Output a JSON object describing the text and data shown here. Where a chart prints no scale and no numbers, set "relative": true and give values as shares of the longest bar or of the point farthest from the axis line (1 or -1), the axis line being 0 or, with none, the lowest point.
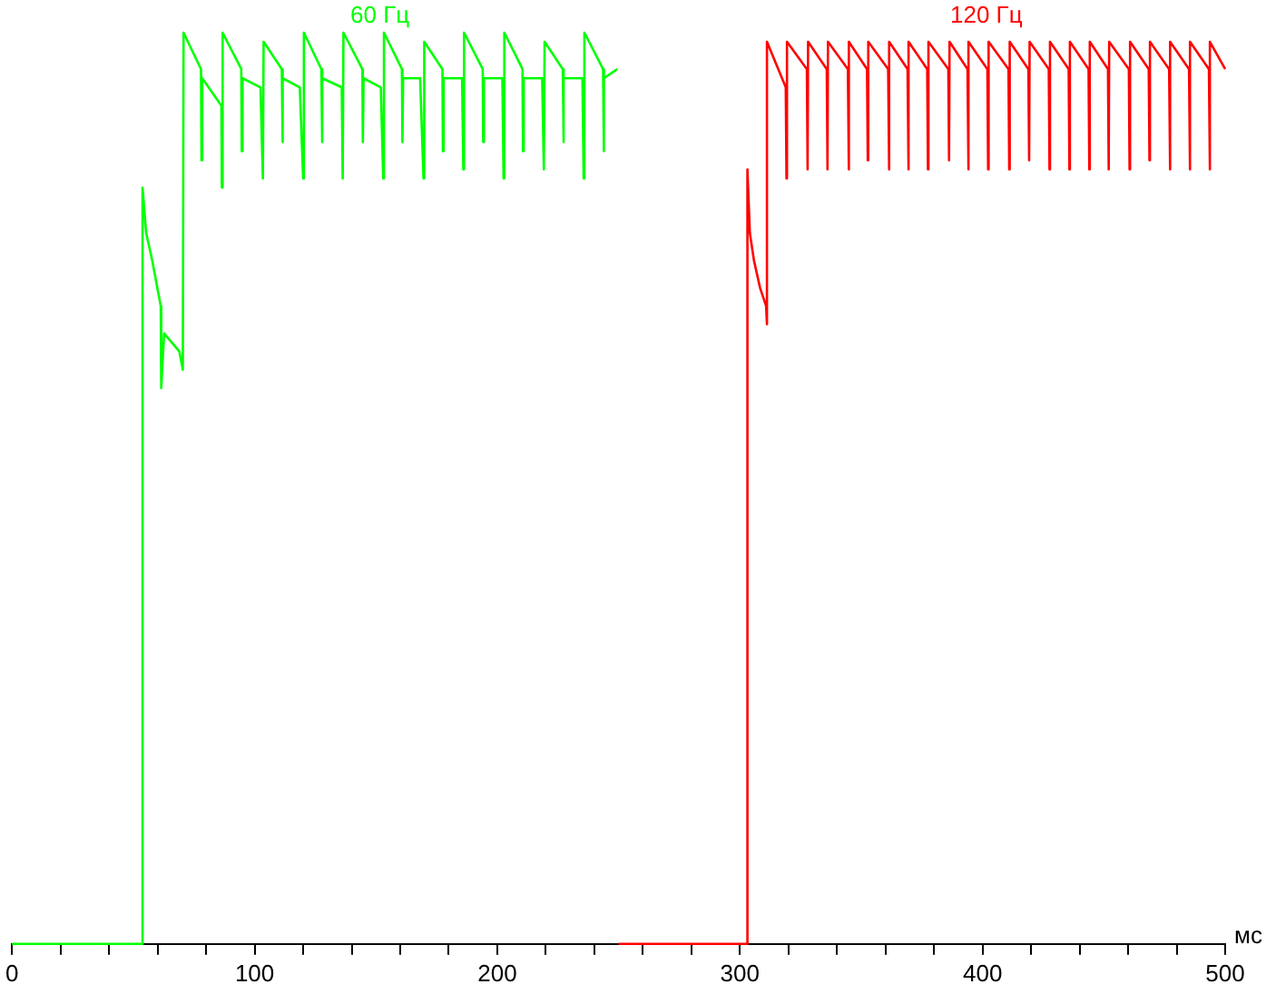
{
  "chart_data": {
    "type": "line",
    "relative": true,
    "xlabel": "мс",
    "xlim": [
      0,
      500
    ],
    "xticks": [
      0,
      {
        "value": 20,
        "label": null
      },
      {
        "value": 40,
        "label": null
      },
      {
        "value": 60,
        "label": null
      },
      {
        "value": 80,
        "label": null
      },
      100,
      {
        "value": 120,
        "label": null
      },
      {
        "value": 140,
        "label": null
      },
      {
        "value": 160,
        "label": null
      },
      {
        "value": 180,
        "label": null
      },
      200,
      {
        "value": 220,
        "label": null
      },
      {
        "value": 240,
        "label": null
      },
      {
        "value": 260,
        "label": null
      },
      {
        "value": 280,
        "label": null
      },
      300,
      {
        "value": 320,
        "label": null
      },
      {
        "value": 340,
        "label": null
      },
      {
        "value": 360,
        "label": null
      },
      {
        "value": 380,
        "label": null
      },
      400,
      {
        "value": 420,
        "label": null
      },
      {
        "value": 440,
        "label": null
      },
      {
        "value": 460,
        "label": null
      },
      {
        "value": 480,
        "label": null
      },
      500
    ],
    "legend": false,
    "series": [
      {
        "name": "60 Гц",
        "color": "#00ff00",
        "x": [
          0,
          53.5,
          53.8,
          55.3,
          57.8,
          61.3,
          61.5,
          62.7,
          69,
          70.4,
          70.7,
          77.9,
          78.1,
          78.4,
          86.3,
          86.5,
          86.8,
          94.5,
          94.7,
          95,
          102.4,
          103.4,
          103.7,
          111.2,
          111.4,
          111.7,
          118.6,
          120,
          120.3,
          127.5,
          127.7,
          128,
          135.9,
          136.3,
          136.6,
          144.4,
          144.6,
          144.9,
          152,
          153,
          153.3,
          160.7,
          160.9,
          161.2,
          168.2,
          169.6,
          169.9,
          177.4,
          177.6,
          177.9,
          185.5,
          186,
          186.3,
          194,
          194.2,
          194.5,
          202.1,
          202.6,
          202.9,
          210.4,
          210.6,
          210.9,
          218.5,
          219.2,
          219.5,
          227,
          227.2,
          227.5,
          235.1,
          235.6,
          235.9,
          243.6,
          243.8,
          244.1,
          249.5
        ],
        "values": [
          0,
          0,
          0.83,
          0.78,
          0.75,
          0.7,
          0.61,
          0.67,
          0.65,
          0.63,
          1,
          0.96,
          0.86,
          0.95,
          0.92,
          0.83,
          1,
          0.96,
          0.87,
          0.95,
          0.94,
          0.84,
          0.99,
          0.96,
          0.88,
          0.95,
          0.94,
          0.84,
          1,
          0.96,
          0.88,
          0.95,
          0.94,
          0.84,
          1,
          0.96,
          0.88,
          0.95,
          0.94,
          0.84,
          1,
          0.96,
          0.88,
          0.95,
          0.95,
          0.84,
          0.99,
          0.96,
          0.87,
          0.95,
          0.95,
          0.85,
          1,
          0.96,
          0.88,
          0.95,
          0.95,
          0.84,
          1,
          0.96,
          0.87,
          0.95,
          0.95,
          0.85,
          0.99,
          0.96,
          0.88,
          0.95,
          0.95,
          0.84,
          1,
          0.96,
          0.87,
          0.95,
          0.96
        ]
      },
      {
        "name": "120 Гц",
        "color": "#ff0000",
        "x": [
          250,
          303,
          303.1,
          304.1,
          305.8,
          308.3,
          310.8,
          311,
          311.3,
          318.9,
          319.2,
          319.4,
          327.6,
          327.9,
          328.1,
          335.8,
          336.1,
          336.3,
          344.5,
          344.8,
          345,
          352.4,
          352.7,
          352.9,
          361.1,
          361.4,
          361.6,
          369.1,
          369.4,
          369.6,
          377.2,
          377.5,
          377.7,
          385.9,
          386.2,
          386.4,
          393.8,
          394.1,
          394.3,
          402,
          402.3,
          402.5,
          410.7,
          411,
          411.2,
          418.9,
          419.2,
          419.4,
          427.3,
          427.6,
          427.8,
          435.5,
          435.8,
          436,
          443.7,
          444,
          444.2,
          451.7,
          452,
          452.2,
          460.3,
          460.6,
          460.8,
          468.5,
          468.8,
          469,
          476.9,
          477.2,
          477.4,
          485.1,
          485.4,
          485.6,
          493.3,
          493.6,
          493.8,
          500
        ],
        "values": [
          0,
          0,
          0.85,
          0.78,
          0.75,
          0.72,
          0.7,
          0.68,
          0.99,
          0.94,
          0.84,
          0.99,
          0.96,
          0.85,
          0.99,
          0.96,
          0.85,
          0.99,
          0.96,
          0.85,
          0.99,
          0.96,
          0.86,
          0.99,
          0.96,
          0.85,
          0.99,
          0.96,
          0.85,
          0.99,
          0.96,
          0.85,
          0.99,
          0.96,
          0.86,
          0.99,
          0.96,
          0.85,
          0.99,
          0.96,
          0.85,
          0.99,
          0.96,
          0.85,
          0.99,
          0.96,
          0.86,
          0.99,
          0.96,
          0.85,
          0.99,
          0.96,
          0.85,
          0.99,
          0.96,
          0.85,
          0.99,
          0.96,
          0.85,
          0.99,
          0.96,
          0.85,
          0.99,
          0.96,
          0.86,
          0.99,
          0.96,
          0.85,
          0.99,
          0.96,
          0.85,
          0.99,
          0.96,
          0.85,
          0.99,
          0.96
        ]
      }
    ]
  }
}
